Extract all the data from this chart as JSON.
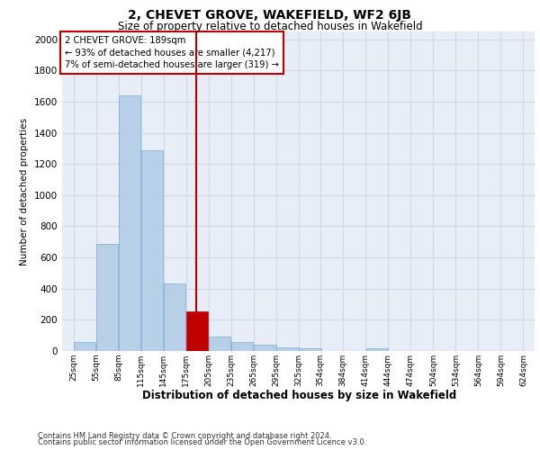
{
  "title_line1": "2, CHEVET GROVE, WAKEFIELD, WF2 6JB",
  "title_line2": "Size of property relative to detached houses in Wakefield",
  "xlabel": "Distribution of detached houses by size in Wakefield",
  "ylabel": "Number of detached properties",
  "footnote1": "Contains HM Land Registry data © Crown copyright and database right 2024.",
  "footnote2": "Contains public sector information licensed under the Open Government Licence v3.0.",
  "annotation_line1": "2 CHEVET GROVE: 189sqm",
  "annotation_line2": "← 93% of detached houses are smaller (4,217)",
  "annotation_line3": "7% of semi-detached houses are larger (319) →",
  "property_size": 189,
  "bins": [
    25,
    55,
    85,
    115,
    145,
    175,
    205,
    235,
    265,
    295,
    325,
    354,
    384,
    414,
    444,
    474,
    504,
    534,
    564,
    594,
    624
  ],
  "values": [
    60,
    690,
    1640,
    1285,
    435,
    255,
    90,
    55,
    40,
    25,
    15,
    0,
    0,
    15,
    0,
    0,
    0,
    0,
    0,
    0
  ],
  "bar_color": "#b8cfe8",
  "bar_edge_color": "#7aacd4",
  "highlight_color": "#c00000",
  "grid_color": "#d0d8e8",
  "bg_color": "#e8eef8",
  "ylim": [
    0,
    2050
  ],
  "yticks": [
    0,
    200,
    400,
    600,
    800,
    1000,
    1200,
    1400,
    1600,
    1800,
    2000
  ]
}
